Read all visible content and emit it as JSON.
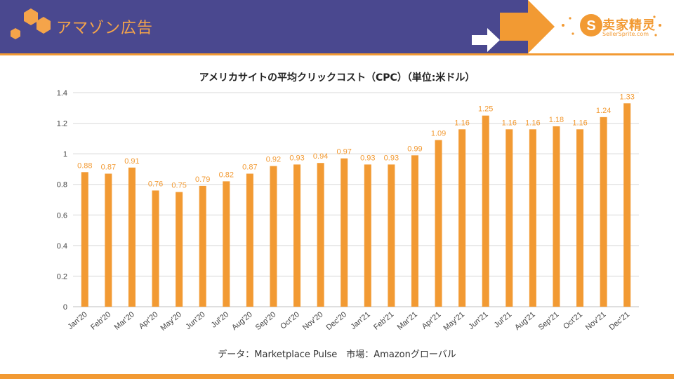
{
  "header": {
    "title": "アマゾン広告",
    "brand_name": "卖家精灵",
    "brand_url": "SellerSprite.com",
    "colors": {
      "band": "#4a488f",
      "accent": "#f29a33",
      "title": "#f5a44a"
    }
  },
  "footer": {
    "source": "データ：Marketplace Pulse　市場：Amazonグローバル"
  },
  "chart_data": {
    "type": "bar",
    "title": "アメリカサイトの平均クリックコスト（CPC）（単位:米ドル）",
    "categories": [
      "Jan'20",
      "Feb'20",
      "Mar'20",
      "Apr'20",
      "May'20",
      "Jun'20",
      "Jul'20",
      "Aug'20",
      "Sep'20",
      "Oct'20",
      "Nov'20",
      "Dec'20",
      "Jan'21",
      "Feb'21",
      "Mar'21",
      "Apr'21",
      "May'21",
      "Jun'21",
      "Jul'21",
      "Aug'21",
      "Sep'21",
      "Oct'21",
      "Nov'21",
      "Dec'21"
    ],
    "values": [
      0.88,
      0.87,
      0.91,
      0.76,
      0.75,
      0.79,
      0.82,
      0.87,
      0.92,
      0.93,
      0.94,
      0.97,
      0.93,
      0.93,
      0.99,
      1.09,
      1.16,
      1.25,
      1.16,
      1.16,
      1.18,
      1.16,
      1.24,
      1.33
    ],
    "labels": [
      "0.88",
      "0.87",
      "0.91",
      "0.76",
      "0.75",
      "0.79",
      "0.82",
      "0.87",
      "0.92",
      "0.93",
      "0.94",
      "0.97",
      "0.93",
      "0.93",
      "0.99",
      "1.09",
      "1.16",
      "1.25",
      "1.16",
      "1.16",
      "1.18",
      "1.16",
      "1.24",
      "1.33"
    ],
    "y_ticks": [
      "0",
      "0.2",
      "0.4",
      "0.6",
      "0.8",
      "1",
      "1.2",
      "1.4"
    ],
    "ylim": [
      0,
      1.4
    ],
    "grid": true,
    "bar_color": "#f29a33",
    "label_color": "#f29a33",
    "grid_color": "#d9d9d9"
  }
}
